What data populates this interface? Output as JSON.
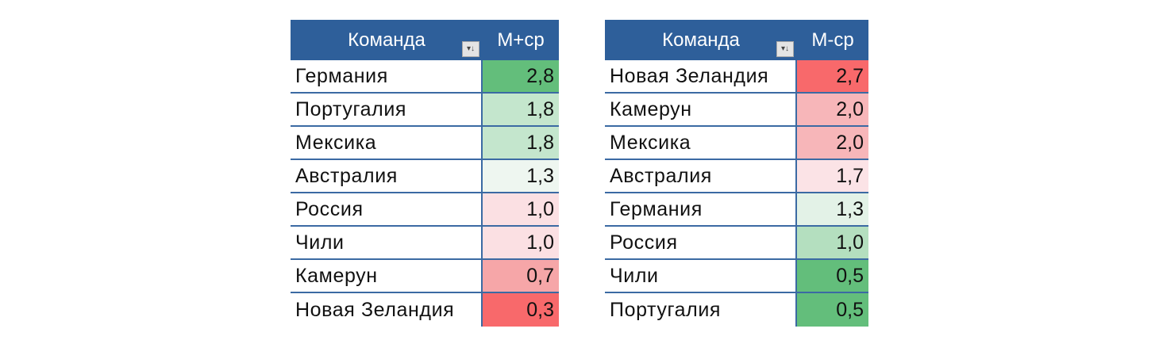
{
  "tables": [
    {
      "header": {
        "team_label": "Команда",
        "value_label": "М+ср",
        "filter_icon": "filter-dropdown-icon"
      },
      "rows": [
        {
          "team": "Германия",
          "value": "2,8",
          "color": "#63be7b"
        },
        {
          "team": "Португалия",
          "value": "1,8",
          "color": "#c4e6cd"
        },
        {
          "team": "Мексика",
          "value": "1,8",
          "color": "#c4e6cd"
        },
        {
          "team": "Австралия",
          "value": "1,3",
          "color": "#eef6f0"
        },
        {
          "team": "Россия",
          "value": "1,0",
          "color": "#fbe0e3"
        },
        {
          "team": "Чили",
          "value": "1,0",
          "color": "#fbe0e3"
        },
        {
          "team": "Камерун",
          "value": "0,7",
          "color": "#f6a6a8"
        },
        {
          "team": "Новая Зеландия",
          "value": "0,3",
          "color": "#f8696b"
        }
      ]
    },
    {
      "header": {
        "team_label": "Команда",
        "value_label": "М-ср",
        "filter_icon": "filter-dropdown-icon"
      },
      "rows": [
        {
          "team": "Новая Зеландия",
          "value": "2,7",
          "color": "#f8696b"
        },
        {
          "team": "Камерун",
          "value": "2,0",
          "color": "#f7b6b9"
        },
        {
          "team": "Мексика",
          "value": "2,0",
          "color": "#f7b6b9"
        },
        {
          "team": "Австралия",
          "value": "1,7",
          "color": "#fbe3e6"
        },
        {
          "team": "Германия",
          "value": "1,3",
          "color": "#e3f2e7"
        },
        {
          "team": "Россия",
          "value": "1,0",
          "color": "#b4dfbf"
        },
        {
          "team": "Чили",
          "value": "0,5",
          "color": "#63be7b"
        },
        {
          "team": "Португалия",
          "value": "0,5",
          "color": "#63be7b"
        }
      ]
    }
  ]
}
